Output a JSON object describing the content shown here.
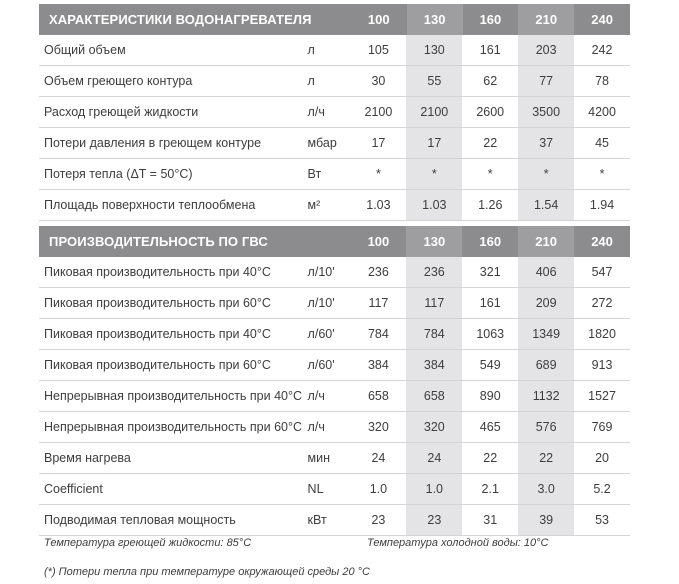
{
  "section1": {
    "title": "ХАРАКТЕРИСТИКИ ВОДОНАГРЕВАТЕЛЯ",
    "models": [
      "100",
      "130",
      "160",
      "210",
      "240"
    ],
    "rows": [
      {
        "label": "Общий объем",
        "unit": "л",
        "values": [
          "105",
          "130",
          "161",
          "203",
          "242"
        ]
      },
      {
        "label": "Объем греющего контура",
        "unit": "л",
        "values": [
          "30",
          "55",
          "62",
          "77",
          "78"
        ]
      },
      {
        "label": "Расход греющей жидкости",
        "unit": "л/ч",
        "values": [
          "2100",
          "2100",
          "2600",
          "3500",
          "4200"
        ]
      },
      {
        "label": "Потери давления в греющем контуре",
        "unit": "мбар",
        "values": [
          "17",
          "17",
          "22",
          "37",
          "45"
        ]
      },
      {
        "label": "Потеря тепла (ΔT = 50°С)",
        "unit": "Вт",
        "values": [
          "*",
          "*",
          "*",
          "*",
          "*"
        ]
      },
      {
        "label": "Площадь поверхности теплообмена",
        "unit": "м²",
        "values": [
          "1.03",
          "1.03",
          "1.26",
          "1.54",
          "1.94"
        ]
      }
    ]
  },
  "section2": {
    "title": "ПРОИЗВОДИТЕЛЬНОСТЬ ПО ГВС",
    "models": [
      "100",
      "130",
      "160",
      "210",
      "240"
    ],
    "rows": [
      {
        "label": "Пиковая производительность при 40°С",
        "unit": "л/10'",
        "values": [
          "236",
          "236",
          "321",
          "406",
          "547"
        ]
      },
      {
        "label": "Пиковая производительность при 60°С",
        "unit": "л/10'",
        "values": [
          "117",
          "117",
          "161",
          "209",
          "272"
        ]
      },
      {
        "label": "Пиковая производительность при 40°С",
        "unit": "л/60'",
        "values": [
          "784",
          "784",
          "1063",
          "1349",
          "1820"
        ]
      },
      {
        "label": "Пиковая производительность при 60°С",
        "unit": "л/60'",
        "values": [
          "384",
          "384",
          "549",
          "689",
          "913"
        ]
      },
      {
        "label": "Непрерывная производительность при 40°С",
        "unit": "л/ч",
        "values": [
          "658",
          "658",
          "890",
          "1132",
          "1527"
        ]
      },
      {
        "label": "Непрерывная производительность при 60°С",
        "unit": "л/ч",
        "values": [
          "320",
          "320",
          "465",
          "576",
          "769"
        ]
      },
      {
        "label": "Время нагрева",
        "unit": "мин",
        "values": [
          "24",
          "24",
          "22",
          "22",
          "20"
        ]
      },
      {
        "label": "Coefficient",
        "unit": "NL",
        "values": [
          "1.0",
          "1.0",
          "2.1",
          "3.0",
          "5.2"
        ]
      },
      {
        "label": "Подводимая тепловая мощность",
        "unit": "кВт",
        "values": [
          "23",
          "23",
          "31",
          "39",
          "53"
        ]
      }
    ]
  },
  "notes": {
    "heating_fluid_temp": "Температура греющей жидкости: 85°С",
    "cold_water_temp": "Температура холодной воды: 10°С",
    "footnote": "(*) Потери тепла при температуре окружающей среды 20 °С"
  },
  "colors": {
    "header_bg": "#8c8c8e",
    "header_shade": "#9e9ea0",
    "column_shade": "#e4e4e6",
    "row_divider": "#d4d4d4"
  }
}
